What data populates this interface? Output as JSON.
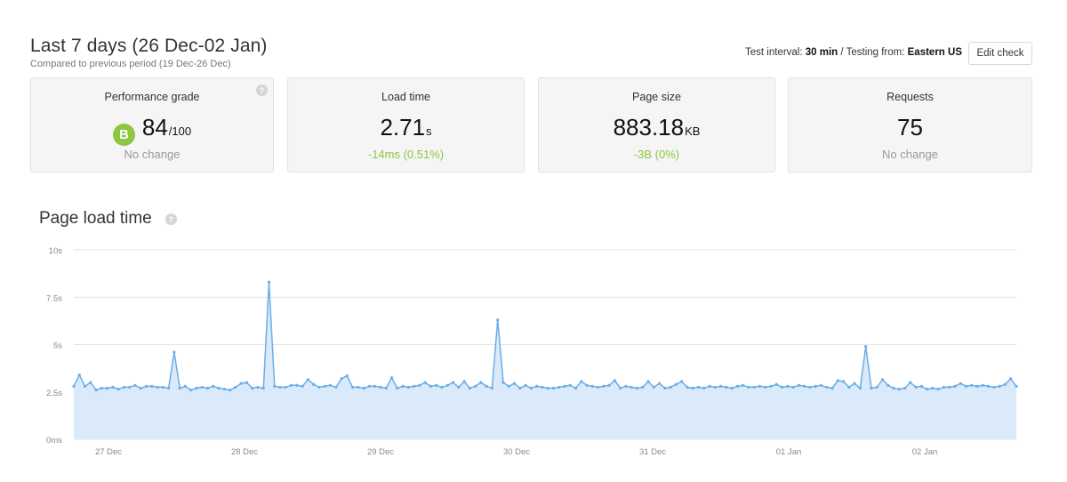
{
  "header": {
    "title": "Last 7 days (26 Dec-02 Jan)",
    "subtitle": "Compared to previous period (19 Dec-26 Dec)"
  },
  "test_info": {
    "interval_label": "Test interval:",
    "interval_value": "30 min",
    "separator": "/",
    "from_label": "Testing from:",
    "from_value": "Eastern US",
    "edit_label": "Edit check"
  },
  "cards": {
    "grade": {
      "title": "Performance grade",
      "badge": "B",
      "value": "84",
      "unit": "/100",
      "change": "No change",
      "help_icon": "question-circle-icon"
    },
    "load": {
      "title": "Load time",
      "value": "2.71",
      "unit": "s",
      "change": "-14ms (0.51%)"
    },
    "size": {
      "title": "Page size",
      "value": "883.18",
      "unit": "KB",
      "change": "-3B (0%)"
    },
    "requests": {
      "title": "Requests",
      "value": "75",
      "change": "No change"
    }
  },
  "colors": {
    "accent_green": "#8dc63f",
    "change_green": "#8cc63e",
    "line": "#6aaee8",
    "area": "#dbeafa",
    "grid": "#e3e3e3"
  },
  "chart_title": "Page load time",
  "chart_help_icon": "question-circle-icon",
  "chart_data": {
    "type": "area",
    "title": "Page load time",
    "ylim": [
      0,
      10
    ],
    "y_ticks": [
      "0ms",
      "2.5s",
      "5s",
      "7.5s",
      "10s"
    ],
    "x_tick_labels": [
      "27 Dec",
      "28 Dec",
      "29 Dec",
      "30 Dec",
      "31 Dec",
      "01 Jan",
      "02 Jan"
    ],
    "x_start": "26 Dec",
    "grid": true,
    "series": [
      {
        "values": [
          2.8,
          3.4,
          2.8,
          3.0,
          2.6,
          2.7,
          2.7,
          2.75,
          2.65,
          2.75,
          2.75,
          2.85,
          2.7,
          2.8,
          2.8,
          2.75,
          2.75,
          2.7,
          4.6,
          2.7,
          2.8,
          2.6,
          2.7,
          2.75,
          2.7,
          2.8,
          2.7,
          2.65,
          2.6,
          2.75,
          2.95,
          3.0,
          2.7,
          2.75,
          2.7,
          8.3,
          2.8,
          2.75,
          2.75,
          2.85,
          2.85,
          2.8,
          3.15,
          2.9,
          2.75,
          2.8,
          2.85,
          2.75,
          3.2,
          3.35,
          2.75,
          2.75,
          2.7,
          2.8,
          2.8,
          2.75,
          2.7,
          3.25,
          2.7,
          2.8,
          2.75,
          2.8,
          2.85,
          3.0,
          2.8,
          2.85,
          2.75,
          2.85,
          3.0,
          2.75,
          3.05,
          2.7,
          2.8,
          3.0,
          2.8,
          2.7,
          6.3,
          3.0,
          2.8,
          2.95,
          2.7,
          2.85,
          2.7,
          2.8,
          2.75,
          2.7,
          2.7,
          2.75,
          2.8,
          2.85,
          2.7,
          3.05,
          2.85,
          2.8,
          2.75,
          2.8,
          2.85,
          3.1,
          2.7,
          2.8,
          2.75,
          2.7,
          2.75,
          3.05,
          2.75,
          2.95,
          2.7,
          2.75,
          2.9,
          3.05,
          2.75,
          2.7,
          2.75,
          2.7,
          2.8,
          2.75,
          2.8,
          2.75,
          2.7,
          2.8,
          2.85,
          2.75,
          2.75,
          2.8,
          2.75,
          2.8,
          2.9,
          2.75,
          2.8,
          2.75,
          2.85,
          2.8,
          2.75,
          2.8,
          2.85,
          2.75,
          2.7,
          3.1,
          3.05,
          2.75,
          2.95,
          2.7,
          4.9,
          2.7,
          2.75,
          3.15,
          2.85,
          2.7,
          2.65,
          2.7,
          3.0,
          2.75,
          2.8,
          2.65,
          2.7,
          2.65,
          2.75,
          2.75,
          2.8,
          2.95,
          2.8,
          2.85,
          2.8,
          2.85,
          2.8,
          2.75,
          2.8,
          2.9,
          3.2,
          2.8
        ]
      }
    ]
  }
}
